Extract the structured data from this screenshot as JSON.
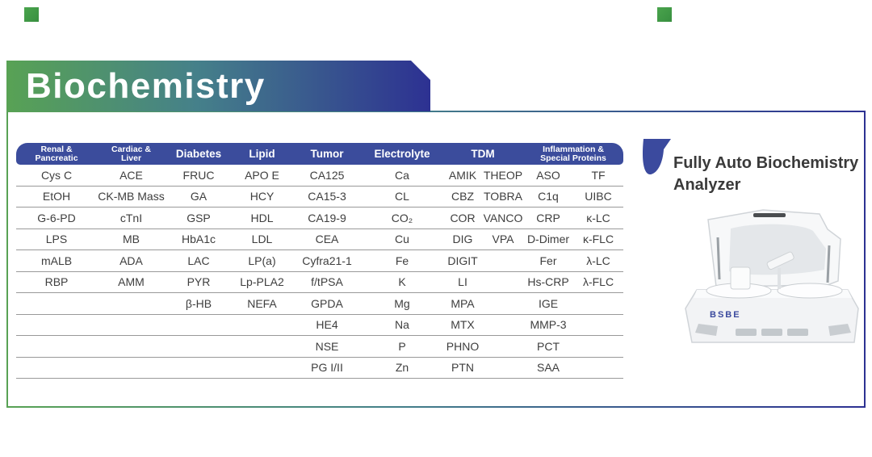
{
  "banner": {
    "title": "Biochemistry"
  },
  "right_panel": {
    "heading_line1": "Fully Auto Biochemistry",
    "heading_line2": "Analyzer",
    "device_label": "BSBE"
  },
  "colors": {
    "banner_gradient_start": "#58a254",
    "banner_gradient_end": "#2d3192",
    "table_header_blue": "#3b4c9c",
    "accent_square_green": "#3f9e46",
    "flag_icon_blue": "#3b4a9e",
    "row_line_gray": "#999999",
    "cell_text": "#3e3e3e"
  },
  "table": {
    "columns": [
      {
        "lines": [
          "Renal &",
          "Pancreatic"
        ]
      },
      {
        "lines": [
          "Cardiac &",
          "Liver"
        ]
      },
      {
        "lines": [
          "Diabetes"
        ]
      },
      {
        "lines": [
          "Lipid"
        ]
      },
      {
        "lines": [
          "Tumor"
        ]
      },
      {
        "lines": [
          "Electrolyte"
        ]
      },
      {
        "lines": [
          "TDM"
        ]
      },
      {
        "lines": [
          "Inflammation &",
          "Special Proteins"
        ]
      }
    ],
    "rows": [
      [
        "Cys C",
        "ACE",
        "FRUC",
        "APO E",
        "CA125",
        "Ca",
        [
          "AMIK",
          "THEOP"
        ],
        [
          "ASO",
          "TF"
        ]
      ],
      [
        "EtOH",
        "CK-MB Mass",
        "GA",
        "HCY",
        "CA15-3",
        "CL",
        [
          "CBZ",
          "TOBRA"
        ],
        [
          "C1q",
          "UIBC"
        ]
      ],
      [
        "G-6-PD",
        "cTnI",
        "GSP",
        "HDL",
        "CA19-9",
        "CO₂",
        [
          "COR",
          "VANCO"
        ],
        [
          "CRP",
          "κ-LC"
        ]
      ],
      [
        "LPS",
        "MB",
        "HbA1c",
        "LDL",
        "CEA",
        "Cu",
        [
          "DIG",
          "VPA"
        ],
        [
          "D-Dimer",
          "κ-FLC"
        ]
      ],
      [
        "mALB",
        "ADA",
        "LAC",
        "LP(a)",
        "Cyfra21-1",
        "Fe",
        [
          "DIGIT",
          ""
        ],
        [
          "Fer",
          "λ-LC"
        ]
      ],
      [
        "RBP",
        "AMM",
        "PYR",
        "Lp-PLA2",
        "f/tPSA",
        "K",
        [
          "LI",
          ""
        ],
        [
          "Hs-CRP",
          "λ-FLC"
        ]
      ],
      [
        "",
        "",
        "β-HB",
        "NEFA",
        "GPDA",
        "Mg",
        [
          "MPA",
          ""
        ],
        [
          "IGE",
          ""
        ]
      ],
      [
        "",
        "",
        "",
        "",
        "HE4",
        "Na",
        [
          "MTX",
          ""
        ],
        [
          "MMP-3",
          ""
        ]
      ],
      [
        "",
        "",
        "",
        "",
        "NSE",
        "P",
        [
          "PHNO",
          ""
        ],
        [
          "PCT",
          ""
        ]
      ],
      [
        "",
        "",
        "",
        "",
        "PG I/II",
        "Zn",
        [
          "PTN",
          ""
        ],
        [
          "SAA",
          ""
        ]
      ]
    ]
  }
}
